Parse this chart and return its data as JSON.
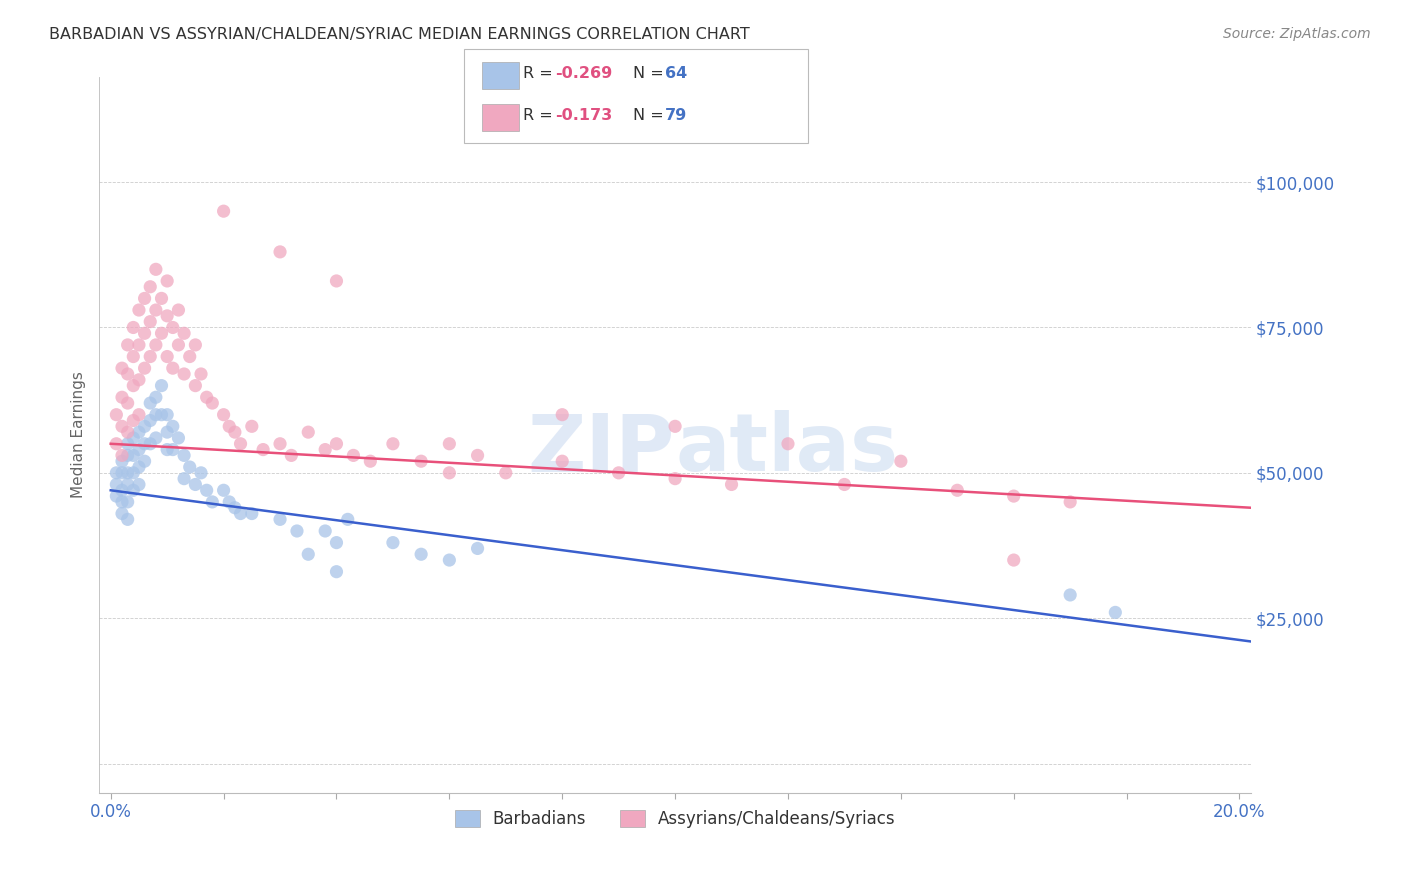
{
  "title": "BARBADIAN VS ASSYRIAN/CHALDEAN/SYRIAC MEDIAN EARNINGS CORRELATION CHART",
  "source": "Source: ZipAtlas.com",
  "ylabel": "Median Earnings",
  "watermark": "ZIPatlas",
  "xlim": [
    -0.002,
    0.202
  ],
  "ylim": [
    -5000,
    118000
  ],
  "yticks": [
    0,
    25000,
    50000,
    75000,
    100000
  ],
  "ytick_labels": [
    "",
    "$25,000",
    "$50,000",
    "$75,000",
    "$100,000"
  ],
  "xticks": [
    0.0,
    0.02,
    0.04,
    0.06,
    0.08,
    0.1,
    0.12,
    0.14,
    0.16,
    0.18,
    0.2
  ],
  "blue_color": "#a8c4e8",
  "pink_color": "#f0a8c0",
  "blue_line_color": "#3a5fcd",
  "pink_line_color": "#e8507a",
  "right_label_color": "#4472c4",
  "title_color": "#333333",
  "blue_R": "-0.269",
  "blue_N": "64",
  "pink_R": "-0.173",
  "pink_N": "79",
  "blue_scatter_x": [
    0.001,
    0.001,
    0.001,
    0.002,
    0.002,
    0.002,
    0.002,
    0.002,
    0.003,
    0.003,
    0.003,
    0.003,
    0.003,
    0.003,
    0.004,
    0.004,
    0.004,
    0.004,
    0.005,
    0.005,
    0.005,
    0.005,
    0.006,
    0.006,
    0.006,
    0.007,
    0.007,
    0.007,
    0.008,
    0.008,
    0.008,
    0.009,
    0.009,
    0.01,
    0.01,
    0.01,
    0.011,
    0.011,
    0.012,
    0.013,
    0.013,
    0.014,
    0.015,
    0.016,
    0.017,
    0.018,
    0.02,
    0.021,
    0.022,
    0.023,
    0.025,
    0.03,
    0.033,
    0.038,
    0.04,
    0.042,
    0.05,
    0.055,
    0.06,
    0.065,
    0.035,
    0.04,
    0.17,
    0.178
  ],
  "blue_scatter_y": [
    50000,
    48000,
    46000,
    52000,
    50000,
    47000,
    45000,
    43000,
    55000,
    53000,
    50000,
    48000,
    45000,
    42000,
    56000,
    53000,
    50000,
    47000,
    57000,
    54000,
    51000,
    48000,
    58000,
    55000,
    52000,
    62000,
    59000,
    55000,
    63000,
    60000,
    56000,
    65000,
    60000,
    60000,
    57000,
    54000,
    58000,
    54000,
    56000,
    53000,
    49000,
    51000,
    48000,
    50000,
    47000,
    45000,
    47000,
    45000,
    44000,
    43000,
    43000,
    42000,
    40000,
    40000,
    38000,
    42000,
    38000,
    36000,
    35000,
    37000,
    36000,
    33000,
    29000,
    26000
  ],
  "pink_scatter_x": [
    0.001,
    0.001,
    0.002,
    0.002,
    0.002,
    0.002,
    0.003,
    0.003,
    0.003,
    0.003,
    0.004,
    0.004,
    0.004,
    0.004,
    0.005,
    0.005,
    0.005,
    0.005,
    0.006,
    0.006,
    0.006,
    0.007,
    0.007,
    0.007,
    0.008,
    0.008,
    0.008,
    0.009,
    0.009,
    0.01,
    0.01,
    0.01,
    0.011,
    0.011,
    0.012,
    0.012,
    0.013,
    0.013,
    0.014,
    0.015,
    0.015,
    0.016,
    0.017,
    0.018,
    0.02,
    0.021,
    0.022,
    0.023,
    0.025,
    0.027,
    0.03,
    0.032,
    0.035,
    0.038,
    0.04,
    0.043,
    0.046,
    0.05,
    0.055,
    0.06,
    0.065,
    0.07,
    0.08,
    0.09,
    0.1,
    0.11,
    0.13,
    0.15,
    0.16,
    0.17,
    0.02,
    0.03,
    0.04,
    0.06,
    0.08,
    0.1,
    0.12,
    0.14,
    0.16
  ],
  "pink_scatter_y": [
    60000,
    55000,
    68000,
    63000,
    58000,
    53000,
    72000,
    67000,
    62000,
    57000,
    75000,
    70000,
    65000,
    59000,
    78000,
    72000,
    66000,
    60000,
    80000,
    74000,
    68000,
    82000,
    76000,
    70000,
    85000,
    78000,
    72000,
    80000,
    74000,
    83000,
    77000,
    70000,
    75000,
    68000,
    78000,
    72000,
    74000,
    67000,
    70000,
    72000,
    65000,
    67000,
    63000,
    62000,
    60000,
    58000,
    57000,
    55000,
    58000,
    54000,
    55000,
    53000,
    57000,
    54000,
    55000,
    53000,
    52000,
    55000,
    52000,
    50000,
    53000,
    50000,
    52000,
    50000,
    49000,
    48000,
    48000,
    47000,
    46000,
    45000,
    95000,
    88000,
    83000,
    55000,
    60000,
    58000,
    55000,
    52000,
    35000
  ],
  "blue_trend_x": [
    0.0,
    0.202
  ],
  "blue_trend_y": [
    47000,
    21000
  ],
  "pink_trend_x": [
    0.0,
    0.202
  ],
  "pink_trend_y": [
    55000,
    44000
  ],
  "background_color": "#ffffff",
  "grid_color": "#cccccc",
  "figsize": [
    14.06,
    8.92
  ],
  "dpi": 100
}
